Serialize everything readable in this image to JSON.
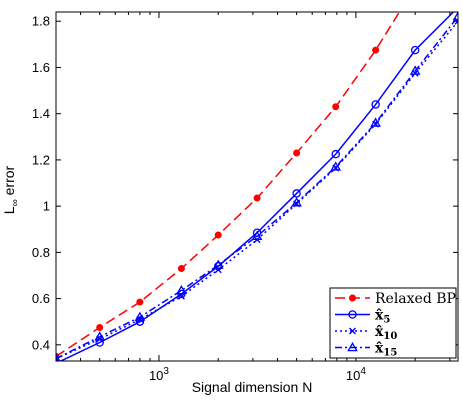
{
  "chart_data": {
    "type": "line",
    "xlabel": "Signal dimension N",
    "ylabel_main": "L",
    "ylabel_sub": "∞",
    "ylabel_rest": " error",
    "xscale": "log",
    "xlim": [
      300,
      33000
    ],
    "ylim": [
      0.33,
      1.84
    ],
    "yticks": [
      0.4,
      0.6,
      0.8,
      1.0,
      1.2,
      1.4,
      1.6,
      1.8
    ],
    "ytick_labels": [
      "0.4",
      "0.6",
      "0.8",
      "1",
      "1.2",
      "1.4",
      "1.6",
      "1.8"
    ],
    "xticks": [
      {
        "value": 1000,
        "base": "10",
        "exp": "3"
      },
      {
        "value": 10000,
        "base": "10",
        "exp": "4"
      }
    ],
    "grid": false,
    "legend_position": "bottom-right",
    "series": [
      {
        "name": "Relaxed BP",
        "legend_base": "Relaxed BP",
        "legend_sub": "",
        "color": "#ff0000",
        "dash": "10,5",
        "marker": "dot",
        "x": [
          300,
          500,
          800,
          1300,
          2000,
          3150,
          5000,
          7900,
          12600,
          20000
        ],
        "y": [
          0.35,
          0.475,
          0.585,
          0.73,
          0.875,
          1.035,
          1.23,
          1.43,
          1.675,
          1.95
        ]
      },
      {
        "name": "x̂5",
        "legend_base": "x̂",
        "legend_sub": "5",
        "color": "#0000ff",
        "dash": "",
        "marker": "circle",
        "x": [
          300,
          500,
          800,
          1300,
          2000,
          3150,
          5000,
          7900,
          12600,
          20000,
          33000
        ],
        "y": [
          0.32,
          0.41,
          0.5,
          0.62,
          0.74,
          0.885,
          1.055,
          1.225,
          1.44,
          1.675,
          1.86
        ]
      },
      {
        "name": "x̂10",
        "legend_base": "x̂",
        "legend_sub": "10",
        "color": "#0000ff",
        "dash": "2,3",
        "marker": "x",
        "x": [
          300,
          500,
          800,
          1300,
          2000,
          3150,
          5000,
          7900,
          12600,
          20000,
          33000
        ],
        "y": [
          0.34,
          0.425,
          0.51,
          0.61,
          0.725,
          0.855,
          1.01,
          1.165,
          1.355,
          1.575,
          1.8
        ]
      },
      {
        "name": "x̂15",
        "legend_base": "x̂",
        "legend_sub": "15",
        "color": "#0000ff",
        "dash": "7,3,2,3",
        "marker": "triangle",
        "x": [
          300,
          500,
          800,
          1300,
          2000,
          3150,
          5000,
          7900,
          12600,
          20000,
          33000
        ],
        "y": [
          0.34,
          0.435,
          0.52,
          0.635,
          0.745,
          0.87,
          1.015,
          1.17,
          1.36,
          1.585,
          1.82
        ]
      }
    ]
  }
}
